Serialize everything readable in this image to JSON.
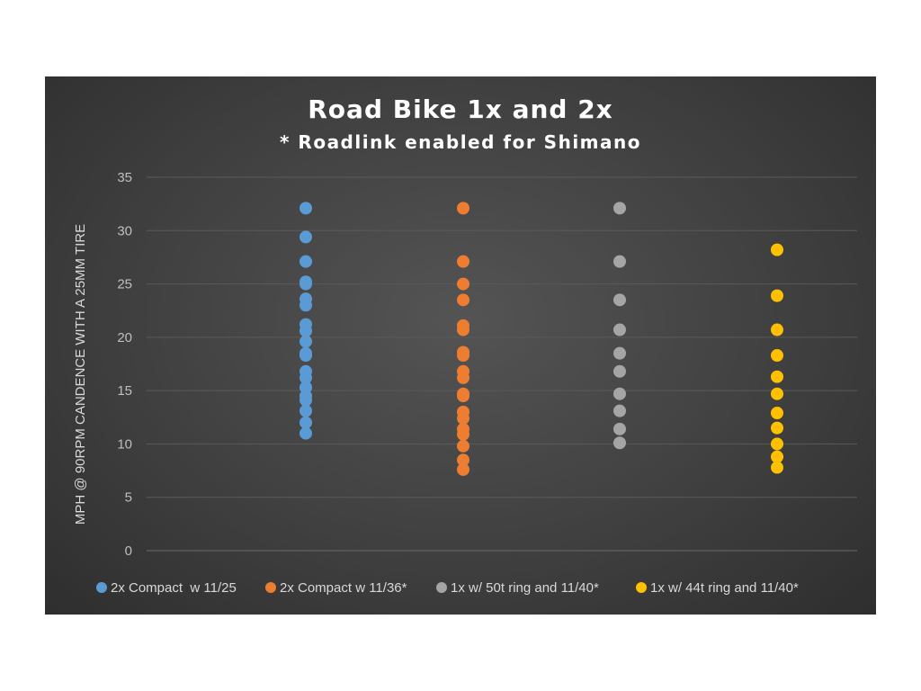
{
  "chart_data": {
    "type": "scatter",
    "title": "Road Bike 1x and 2x",
    "subtitle": "* Roadlink enabled for Shimano",
    "ylabel": "MPH @ 90RPM CANDENCE WITH A 25MM TIRE",
    "xlabel": "",
    "ylim": [
      0,
      35
    ],
    "yticks": [
      "0",
      "5",
      "10",
      "15",
      "20",
      "25",
      "30",
      "35"
    ],
    "grid": true,
    "legend_position": "bottom",
    "series": [
      {
        "name": "2x Compact  w 11/25",
        "color": "#5b9bd5",
        "x": 1,
        "values": [
          32.1,
          29.4,
          27.1,
          25.2,
          25.0,
          23.6,
          23.0,
          21.2,
          20.6,
          19.6,
          18.5,
          18.3,
          16.8,
          16.2,
          15.3,
          14.5,
          14.1,
          13.1,
          12.0,
          11.0
        ]
      },
      {
        "name": "2x Compact w 11/36*",
        "color": "#ed7d31",
        "x": 2,
        "values": [
          32.1,
          27.1,
          25.0,
          23.5,
          21.1,
          20.7,
          18.6,
          18.3,
          16.8,
          16.2,
          14.7,
          14.5,
          13.0,
          12.4,
          11.4,
          10.9,
          9.8,
          8.5,
          7.6
        ]
      },
      {
        "name": "1x w/ 50t ring and 11/40*",
        "color": "#a5a5a5",
        "x": 3,
        "values": [
          32.1,
          27.1,
          23.5,
          20.7,
          18.5,
          16.8,
          14.7,
          13.1,
          11.4,
          10.1
        ]
      },
      {
        "name": "1x w/ 44t ring and 11/40*",
        "color": "#ffc000",
        "x": 4,
        "values": [
          28.2,
          23.9,
          20.7,
          18.3,
          16.3,
          14.7,
          12.9,
          11.5,
          10.0,
          8.8,
          7.8
        ]
      }
    ]
  }
}
